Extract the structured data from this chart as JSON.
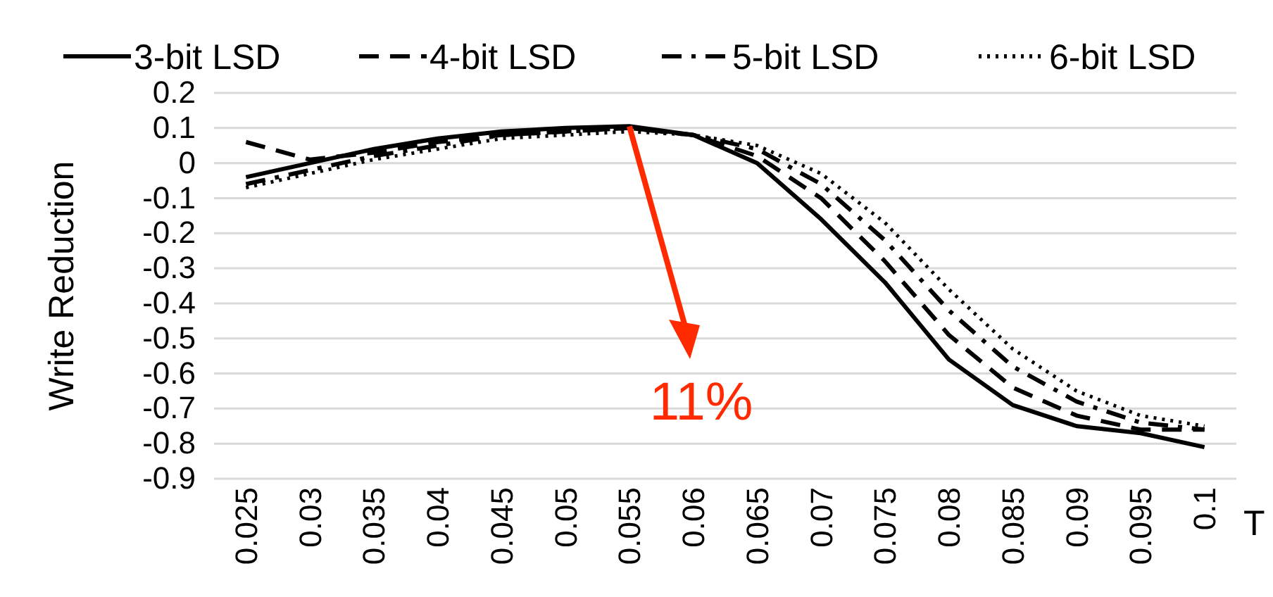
{
  "chart_data": {
    "type": "line",
    "xlabel": "T",
    "ylabel": "Write Reduction",
    "categories": [
      "0.025",
      "0.03",
      "0.035",
      "0.04",
      "0.045",
      "0.05",
      "0.055",
      "0.06",
      "0.065",
      "0.07",
      "0.075",
      "0.08",
      "0.085",
      "0.09",
      "0.095",
      "0.1"
    ],
    "ylim": [
      -0.9,
      0.2
    ],
    "yticks": [
      0.2,
      0.1,
      0,
      -0.1,
      -0.2,
      -0.3,
      -0.4,
      -0.5,
      -0.6,
      -0.7,
      -0.8,
      -0.9
    ],
    "grid": "y",
    "legend": "top",
    "marker": "none",
    "series": [
      {
        "name": "3-bit LSD",
        "color": "#000000",
        "line_style": "solid",
        "values": [
          -0.04,
          0.0,
          0.04,
          0.07,
          0.09,
          0.1,
          0.105,
          0.08,
          0.0,
          -0.16,
          -0.34,
          -0.56,
          -0.69,
          -0.75,
          -0.77,
          -0.81
        ]
      },
      {
        "name": "4-bit LSD",
        "color": "#000000",
        "line_style": "dashed",
        "values": [
          0.06,
          0.01,
          0.03,
          0.06,
          0.08,
          0.09,
          0.1,
          0.08,
          0.02,
          -0.1,
          -0.28,
          -0.49,
          -0.64,
          -0.72,
          -0.76,
          -0.76
        ]
      },
      {
        "name": "5-bit LSD",
        "color": "#000000",
        "line_style": "dashdot",
        "values": [
          -0.06,
          -0.02,
          0.02,
          0.05,
          0.08,
          0.09,
          0.1,
          0.08,
          0.04,
          -0.06,
          -0.22,
          -0.42,
          -0.58,
          -0.68,
          -0.74,
          -0.76
        ]
      },
      {
        "name": "6-bit LSD",
        "color": "#000000",
        "line_style": "dotted",
        "values": [
          -0.07,
          -0.03,
          0.01,
          0.04,
          0.07,
          0.08,
          0.09,
          0.08,
          0.05,
          -0.03,
          -0.17,
          -0.36,
          -0.53,
          -0.65,
          -0.72,
          -0.75
        ]
      }
    ],
    "annotations": [
      {
        "text": "11%",
        "x": "0.055",
        "y": 0.105
      }
    ]
  }
}
